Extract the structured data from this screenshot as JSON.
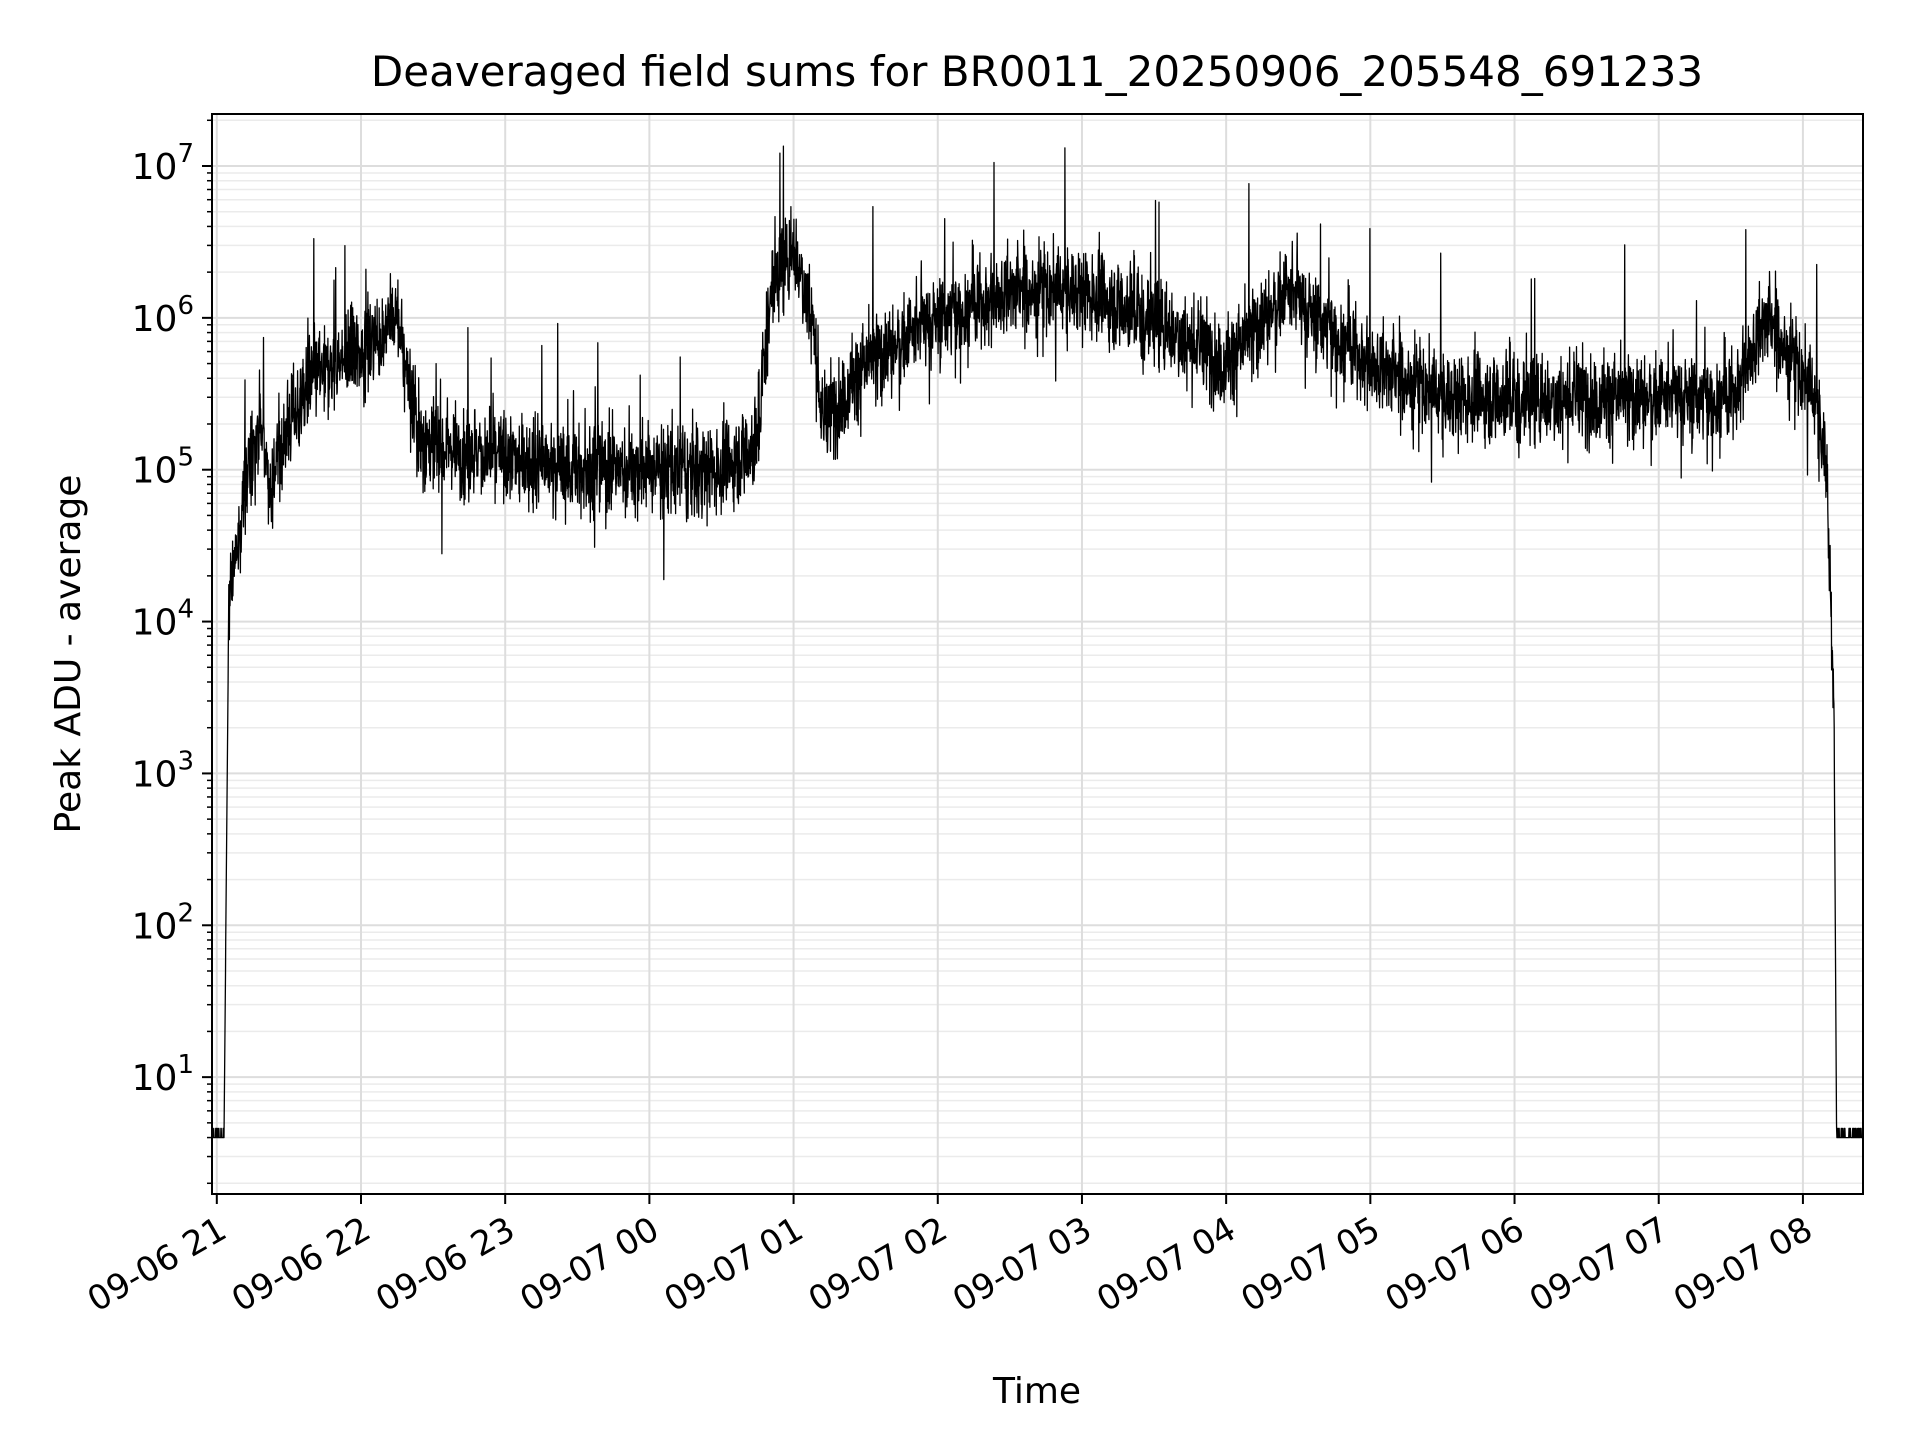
{
  "chart_data": {
    "type": "line",
    "title": "Deaveraged field sums for BR0011_20250906_205548_691233",
    "xlabel": "Time",
    "ylabel": "Peak ADU - average",
    "yscale": "log",
    "ylim": [
      1.7,
      22000000
    ],
    "xlim": [
      "2025-09-06 20:58",
      "2025-09-07 08:25"
    ],
    "grid": "on (major and minor)",
    "x_tick_labels": [
      "09-06 21",
      "09-06 22",
      "09-06 23",
      "09-07 00",
      "09-07 01",
      "09-07 02",
      "09-07 03",
      "09-07 04",
      "09-07 05",
      "09-07 06",
      "09-07 07",
      "09-07 08"
    ],
    "x_ticks": [
      "2025-09-06 21:00",
      "2025-09-06 22:00",
      "2025-09-06 23:00",
      "2025-09-07 00:00",
      "2025-09-07 01:00",
      "2025-09-07 02:00",
      "2025-09-07 03:00",
      "2025-09-07 04:00",
      "2025-09-07 05:00",
      "2025-09-07 06:00",
      "2025-09-07 07:00",
      "2025-09-07 08:00"
    ],
    "y_ticks": [
      {
        "value": 10,
        "base": "10",
        "exp": "1"
      },
      {
        "value": 100,
        "base": "10",
        "exp": "2"
      },
      {
        "value": 1000,
        "base": "10",
        "exp": "3"
      },
      {
        "value": 10000,
        "base": "10",
        "exp": "4"
      },
      {
        "value": 100000,
        "base": "10",
        "exp": "5"
      },
      {
        "value": 1000000,
        "base": "10",
        "exp": "6"
      },
      {
        "value": 10000000,
        "base": "10",
        "exp": "7"
      }
    ],
    "series": [
      {
        "color": "#000000",
        "x": [
          "2025-09-06 20:58",
          "2025-09-06 21:03",
          "2025-09-06 21:05",
          "2025-09-06 21:08",
          "2025-09-06 21:12",
          "2025-09-06 21:18",
          "2025-09-06 21:22",
          "2025-09-06 21:30",
          "2025-09-06 21:40",
          "2025-09-06 22:00",
          "2025-09-06 22:15",
          "2025-09-06 22:25",
          "2025-09-06 22:32",
          "2025-09-06 22:45",
          "2025-09-06 23:00",
          "2025-09-06 23:30",
          "2025-09-07 00:00",
          "2025-09-07 00:30",
          "2025-09-07 00:45",
          "2025-09-07 00:50",
          "2025-09-07 01:00",
          "2025-09-07 01:08",
          "2025-09-07 01:12",
          "2025-09-07 01:30",
          "2025-09-07 02:00",
          "2025-09-07 02:30",
          "2025-09-07 03:00",
          "2025-09-07 03:30",
          "2025-09-07 04:00",
          "2025-09-07 04:25",
          "2025-09-07 05:00",
          "2025-09-07 05:30",
          "2025-09-07 06:00",
          "2025-09-07 06:30",
          "2025-09-07 07:00",
          "2025-09-07 07:30",
          "2025-09-07 07:45",
          "2025-09-07 08:05",
          "2025-09-07 08:10",
          "2025-09-07 08:13",
          "2025-09-07 08:14",
          "2025-09-07 08:25"
        ],
        "y": [
          4,
          4,
          15000,
          25000,
          80000,
          200000,
          80000,
          200000,
          400000,
          600000,
          1000000,
          150000,
          150000,
          130000,
          120000,
          100000,
          100000,
          100000,
          150000,
          1500000,
          3000000,
          1000000,
          200000,
          500000,
          1000000,
          1500000,
          1500000,
          1000000,
          500000,
          1500000,
          500000,
          300000,
          300000,
          300000,
          300000,
          300000,
          1000000,
          300000,
          100000,
          2000,
          4,
          4
        ]
      }
    ]
  }
}
